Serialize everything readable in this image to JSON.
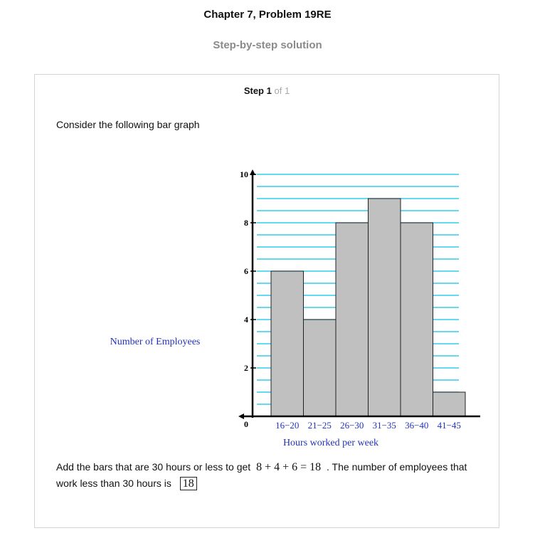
{
  "header": {
    "title": "Chapter 7, Problem 19RE",
    "subtitle": "Step-by-step solution"
  },
  "step": {
    "label": "Step",
    "current": "1",
    "of_text": "of 1"
  },
  "intro_text": "Consider the following bar graph",
  "chart_data": {
    "type": "bar",
    "categories": [
      "16−20",
      "21−25",
      "26−30",
      "31−35",
      "36−40",
      "41−45"
    ],
    "values": [
      6,
      4,
      8,
      9,
      8,
      1
    ],
    "xlabel": "Hours worked per week",
    "ylabel": "Number of Employees",
    "ylim": [
      0,
      10
    ],
    "yticks": [
      "0",
      "2",
      "4",
      "6",
      "8",
      "10"
    ],
    "grid": true,
    "colors": {
      "bar": "#c0c0c0",
      "grid": "#33ccee",
      "label": "#2233bb"
    }
  },
  "answer": {
    "text_before": "Add the bars that are 30 hours or less to get",
    "equation": "8 + 4 + 6 = 18",
    "text_after": ". The number of employees that work less than 30 hours is",
    "boxed_value": "18"
  }
}
